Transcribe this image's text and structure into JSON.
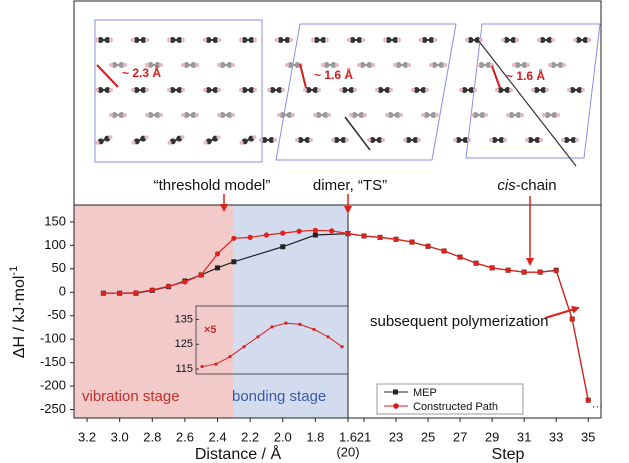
{
  "figure": {
    "structures": [
      {
        "caption": "“threshold model”",
        "distance": "~ 2.3 Å"
      },
      {
        "caption": "dimer,  “TS”",
        "distance": "~ 1.6 Å"
      },
      {
        "caption_italic": "cis",
        "caption": "-chain",
        "distance": "~ 1.6 Å"
      }
    ]
  },
  "chart_data": [
    {
      "type": "line",
      "xlabel": "Distance / Å",
      "ylabel": {
        "text": "ΔH / kJ·mol",
        "superscript": "-1"
      },
      "xlim": [
        3.28,
        1.6
      ],
      "ylim": [
        -268,
        186
      ],
      "xticks": [
        3.2,
        {
          "value": 3,
          "label": "3.0"
        },
        2.8,
        2.6,
        2.4,
        2.2,
        {
          "value": 2,
          "label": "2.0"
        },
        1.8,
        1.6
      ],
      "yticks": [
        150,
        100,
        50,
        0,
        -50,
        -100,
        -150,
        -200,
        -250
      ],
      "stage_boundary": 2.3,
      "shade_colors": [
        "#f3caca",
        "#d3dbee"
      ],
      "annotations": [
        "vibration stage",
        "bonding stage"
      ],
      "series": [
        {
          "color": "#222222",
          "x": [
            3.1,
            3.0,
            2.9,
            2.8,
            2.7,
            2.6,
            2.5,
            2.4,
            2.3,
            2.0,
            1.8,
            1.6
          ],
          "values": [
            -2,
            -2,
            -2,
            4,
            12,
            24,
            37,
            52,
            65,
            97,
            122,
            125
          ]
        },
        {
          "color": "#e0201b",
          "x": [
            3.1,
            3.0,
            2.9,
            2.8,
            2.7,
            2.6,
            2.5,
            2.4,
            2.3,
            2.2,
            2.1,
            2.0,
            1.9,
            1.8,
            1.7,
            1.6
          ],
          "values": [
            -2,
            -2,
            -1,
            5,
            13,
            22,
            37,
            82,
            115,
            117,
            122,
            126,
            130,
            132,
            131,
            125
          ]
        }
      ]
    },
    {
      "type": "line",
      "xlabel": "Step",
      "start_label": "(20)",
      "xlim": [
        20,
        35.8
      ],
      "ylim": [
        -268,
        186
      ],
      "xticks": [
        21,
        23,
        25,
        27,
        29,
        31,
        33,
        35
      ],
      "annotations": [
        "subsequent polymerization"
      ],
      "series": [
        {
          "name": "MEP",
          "color": "#222222",
          "x": [
            20,
            21,
            22,
            23,
            24,
            25,
            26,
            27,
            28,
            29,
            30,
            31,
            32,
            33,
            34,
            35
          ],
          "values": [
            125,
            120,
            117,
            113,
            107,
            98,
            88,
            75,
            62,
            52,
            47,
            43,
            43,
            47,
            -57,
            -230
          ]
        },
        {
          "name": "Constructed Path",
          "color": "#e0201b",
          "x": [
            20,
            21,
            22,
            23,
            24,
            25,
            26,
            27,
            28,
            29,
            30,
            31,
            32,
            33,
            34,
            35
          ],
          "values": [
            125,
            120,
            117,
            113,
            107,
            98,
            88,
            75,
            62,
            52,
            47,
            43,
            43,
            46,
            -57,
            -230
          ]
        }
      ]
    },
    {
      "type": "line",
      "annotation": "×5",
      "ylim": [
        113,
        138
      ],
      "yticks": [
        115,
        125,
        135
      ],
      "color": "#e0201b",
      "values": [
        116,
        117,
        120,
        124,
        128,
        132,
        133.5,
        133,
        131,
        128,
        124
      ]
    }
  ]
}
